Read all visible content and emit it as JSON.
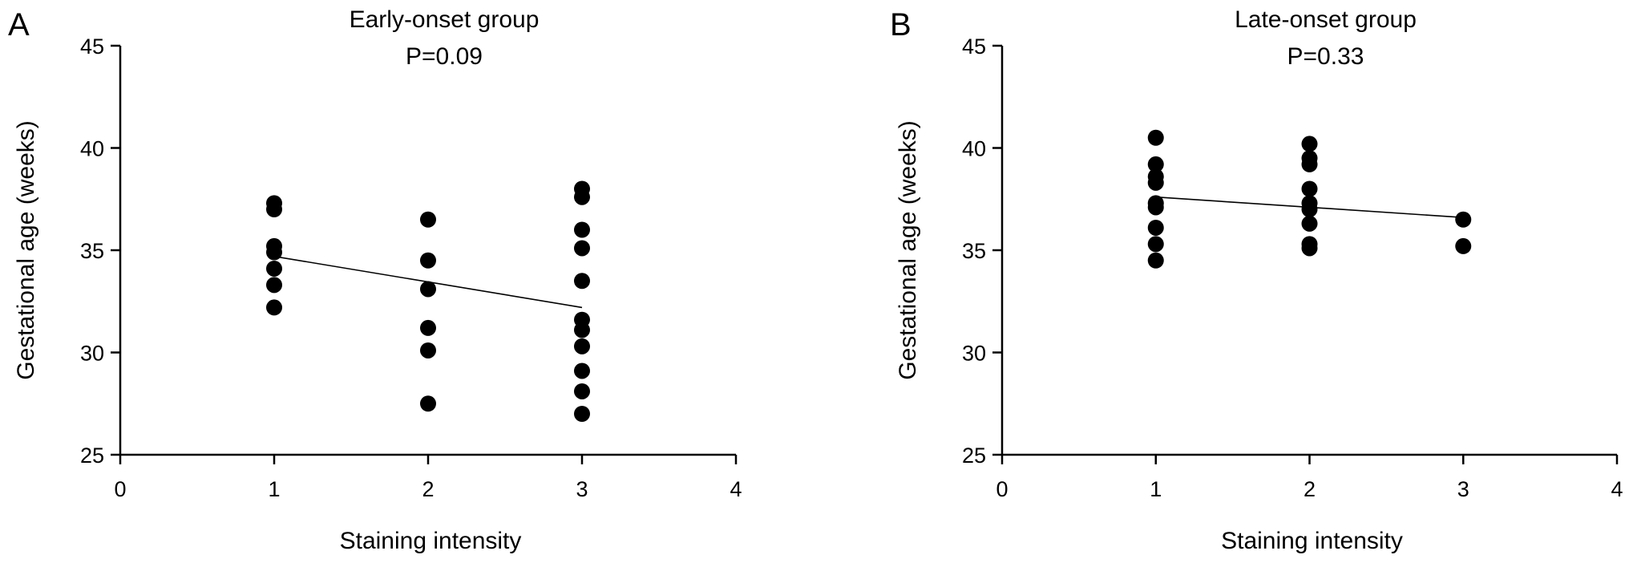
{
  "chart_data": [
    {
      "type": "scatter",
      "panel_label": "A",
      "title": "Early-onset group",
      "subtitle": "P=0.09",
      "xlabel": "Staining intensity",
      "ylabel": "Gestational age (weeks)",
      "xlim": [
        0,
        4
      ],
      "ylim": [
        25,
        45
      ],
      "x_ticks": [
        "0",
        "1",
        "2",
        "3",
        "4"
      ],
      "y_ticks": [
        "25",
        "30",
        "35",
        "40",
        "45"
      ],
      "grid": false,
      "marker_color": "#000000",
      "points": [
        {
          "x": 1,
          "y": 37.3
        },
        {
          "x": 1,
          "y": 37.0
        },
        {
          "x": 1,
          "y": 35.2
        },
        {
          "x": 1,
          "y": 34.9
        },
        {
          "x": 1,
          "y": 34.1
        },
        {
          "x": 1,
          "y": 33.3
        },
        {
          "x": 1,
          "y": 32.2
        },
        {
          "x": 2,
          "y": 36.5
        },
        {
          "x": 2,
          "y": 34.5
        },
        {
          "x": 2,
          "y": 33.1
        },
        {
          "x": 2,
          "y": 31.2
        },
        {
          "x": 2,
          "y": 30.1
        },
        {
          "x": 2,
          "y": 27.5
        },
        {
          "x": 3,
          "y": 38.0
        },
        {
          "x": 3,
          "y": 37.6
        },
        {
          "x": 3,
          "y": 36.0
        },
        {
          "x": 3,
          "y": 35.1
        },
        {
          "x": 3,
          "y": 33.5
        },
        {
          "x": 3,
          "y": 31.6
        },
        {
          "x": 3,
          "y": 31.1
        },
        {
          "x": 3,
          "y": 30.3
        },
        {
          "x": 3,
          "y": 29.1
        },
        {
          "x": 3,
          "y": 28.1
        },
        {
          "x": 3,
          "y": 27.0
        }
      ],
      "fit_line": {
        "x": [
          1,
          3
        ],
        "y": [
          34.7,
          32.2
        ]
      }
    },
    {
      "type": "scatter",
      "panel_label": "B",
      "title": "Late-onset group",
      "subtitle": "P=0.33",
      "xlabel": "Staining intensity",
      "ylabel": "Gestational age (weeks)",
      "xlim": [
        0,
        4
      ],
      "ylim": [
        25,
        45
      ],
      "x_ticks": [
        "0",
        "1",
        "2",
        "3",
        "4"
      ],
      "y_ticks": [
        "25",
        "30",
        "35",
        "40",
        "45"
      ],
      "grid": false,
      "marker_color": "#000000",
      "points": [
        {
          "x": 1,
          "y": 40.5
        },
        {
          "x": 1,
          "y": 39.2
        },
        {
          "x": 1,
          "y": 38.6
        },
        {
          "x": 1,
          "y": 38.3
        },
        {
          "x": 1,
          "y": 37.3
        },
        {
          "x": 1,
          "y": 37.1
        },
        {
          "x": 1,
          "y": 36.1
        },
        {
          "x": 1,
          "y": 35.3
        },
        {
          "x": 1,
          "y": 34.5
        },
        {
          "x": 2,
          "y": 40.2
        },
        {
          "x": 2,
          "y": 39.5
        },
        {
          "x": 2,
          "y": 39.2
        },
        {
          "x": 2,
          "y": 38.0
        },
        {
          "x": 2,
          "y": 37.3
        },
        {
          "x": 2,
          "y": 37.0
        },
        {
          "x": 2,
          "y": 36.3
        },
        {
          "x": 2,
          "y": 35.3
        },
        {
          "x": 2,
          "y": 35.1
        },
        {
          "x": 3,
          "y": 36.5
        },
        {
          "x": 3,
          "y": 35.2
        }
      ],
      "fit_line": {
        "x": [
          1,
          3
        ],
        "y": [
          37.6,
          36.6
        ]
      }
    }
  ]
}
